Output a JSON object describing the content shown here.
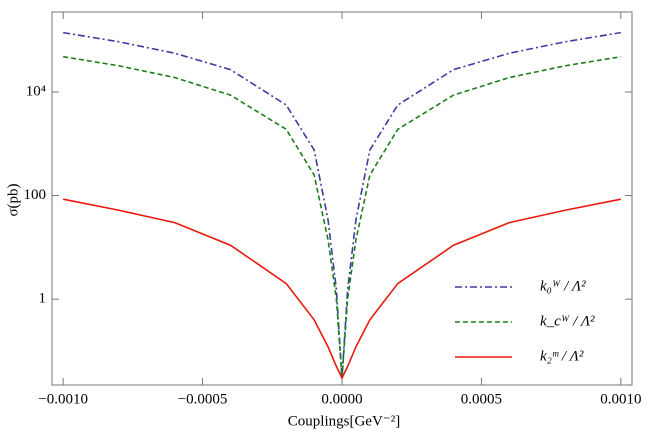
{
  "chart_data": {
    "type": "line",
    "x_label": "Couplings[GeV⁻²]",
    "y_label": "σ(pb)",
    "x": [
      -0.001,
      -0.0008,
      -0.0006,
      -0.0004,
      -0.0002,
      -0.0001,
      -5e-05,
      -2e-05,
      0,
      2e-05,
      5e-05,
      0.0001,
      0.0002,
      0.0004,
      0.0006,
      0.0008,
      0.001
    ],
    "series": [
      {
        "name": "k₀ᵂ / Λ²",
        "color": "#3c3ca0",
        "dash": "7,3,2,3",
        "values": [
          140000,
          93000,
          56000,
          27000,
          5600,
          760,
          34,
          1.5,
          0.03,
          1.5,
          34,
          760,
          5600,
          27000,
          56000,
          93000,
          140000
        ]
      },
      {
        "name": "k_cᵂ / Λ²",
        "color": "#1a7f1a",
        "dash": "5,3",
        "values": [
          48000,
          32000,
          19000,
          8700,
          1900,
          250,
          14,
          1,
          0.03,
          1,
          14,
          250,
          1900,
          8700,
          19000,
          32000,
          48000
        ]
      },
      {
        "name": "k₂ᵐ / Λ²",
        "color": "#e8190f",
        "dash": "none",
        "values": [
          85,
          52,
          30,
          11,
          2,
          0.4,
          0.12,
          0.05,
          0.03,
          0.05,
          0.12,
          0.4,
          2,
          11,
          30,
          52,
          85
        ]
      }
    ],
    "xlim": [
      -0.00104,
      0.00104
    ],
    "ylim": [
      0.022,
      350000
    ],
    "log_y": true,
    "xticks": [
      {
        "value": -0.001,
        "label": "−0.0010"
      },
      {
        "value": -0.0005,
        "label": "−0.0005"
      },
      {
        "value": 0,
        "label": "0.0000"
      },
      {
        "value": 0.0005,
        "label": "0.0005"
      },
      {
        "value": 0.001,
        "label": "0.0010"
      }
    ],
    "yticks": [
      1,
      100,
      {
        "value": 10000,
        "label": "10⁴"
      }
    ],
    "legend": "lower-right"
  }
}
